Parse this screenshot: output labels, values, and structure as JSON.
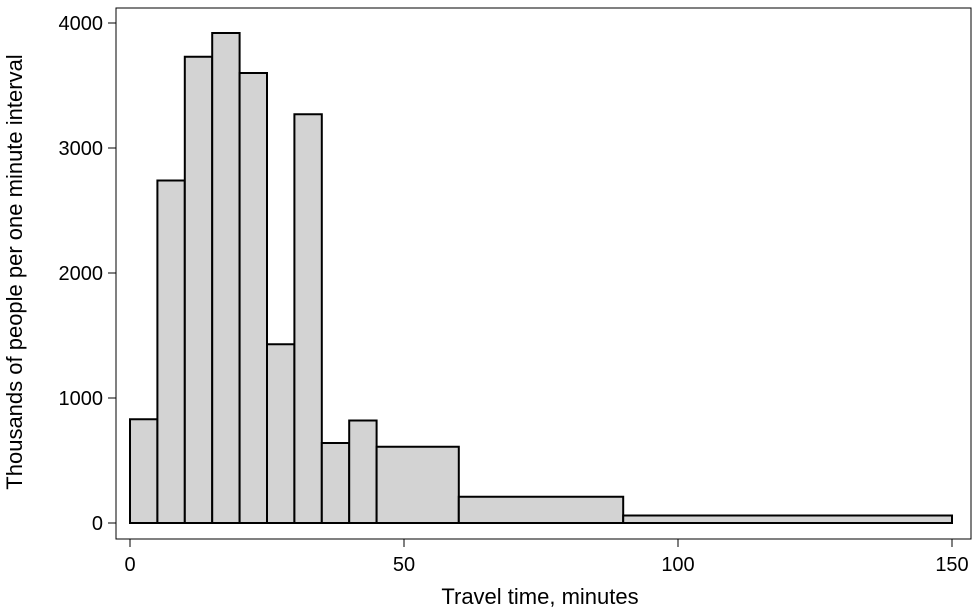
{
  "chart_data": {
    "type": "bar",
    "title": "",
    "xlabel": "Travel time, minutes",
    "ylabel": "Thousands of people per one minute interval",
    "xlim": [
      0,
      150
    ],
    "ylim": [
      0,
      4000
    ],
    "x_ticks": [
      "0",
      "50",
      "100",
      "150"
    ],
    "y_ticks": [
      "0",
      "1000",
      "2000",
      "3000",
      "4000"
    ],
    "grid": false,
    "bar_fill": "#d3d3d3",
    "bar_stroke": "#000000",
    "bins": [
      {
        "x0": 0,
        "x1": 5,
        "value": 830
      },
      {
        "x0": 5,
        "x1": 10,
        "value": 2740
      },
      {
        "x0": 10,
        "x1": 15,
        "value": 3730
      },
      {
        "x0": 15,
        "x1": 20,
        "value": 3920
      },
      {
        "x0": 20,
        "x1": 25,
        "value": 3600
      },
      {
        "x0": 25,
        "x1": 30,
        "value": 1430
      },
      {
        "x0": 30,
        "x1": 35,
        "value": 3270
      },
      {
        "x0": 35,
        "x1": 40,
        "value": 640
      },
      {
        "x0": 40,
        "x1": 45,
        "value": 820
      },
      {
        "x0": 45,
        "x1": 60,
        "value": 610
      },
      {
        "x0": 60,
        "x1": 90,
        "value": 210
      },
      {
        "x0": 90,
        "x1": 150,
        "value": 60
      }
    ]
  }
}
